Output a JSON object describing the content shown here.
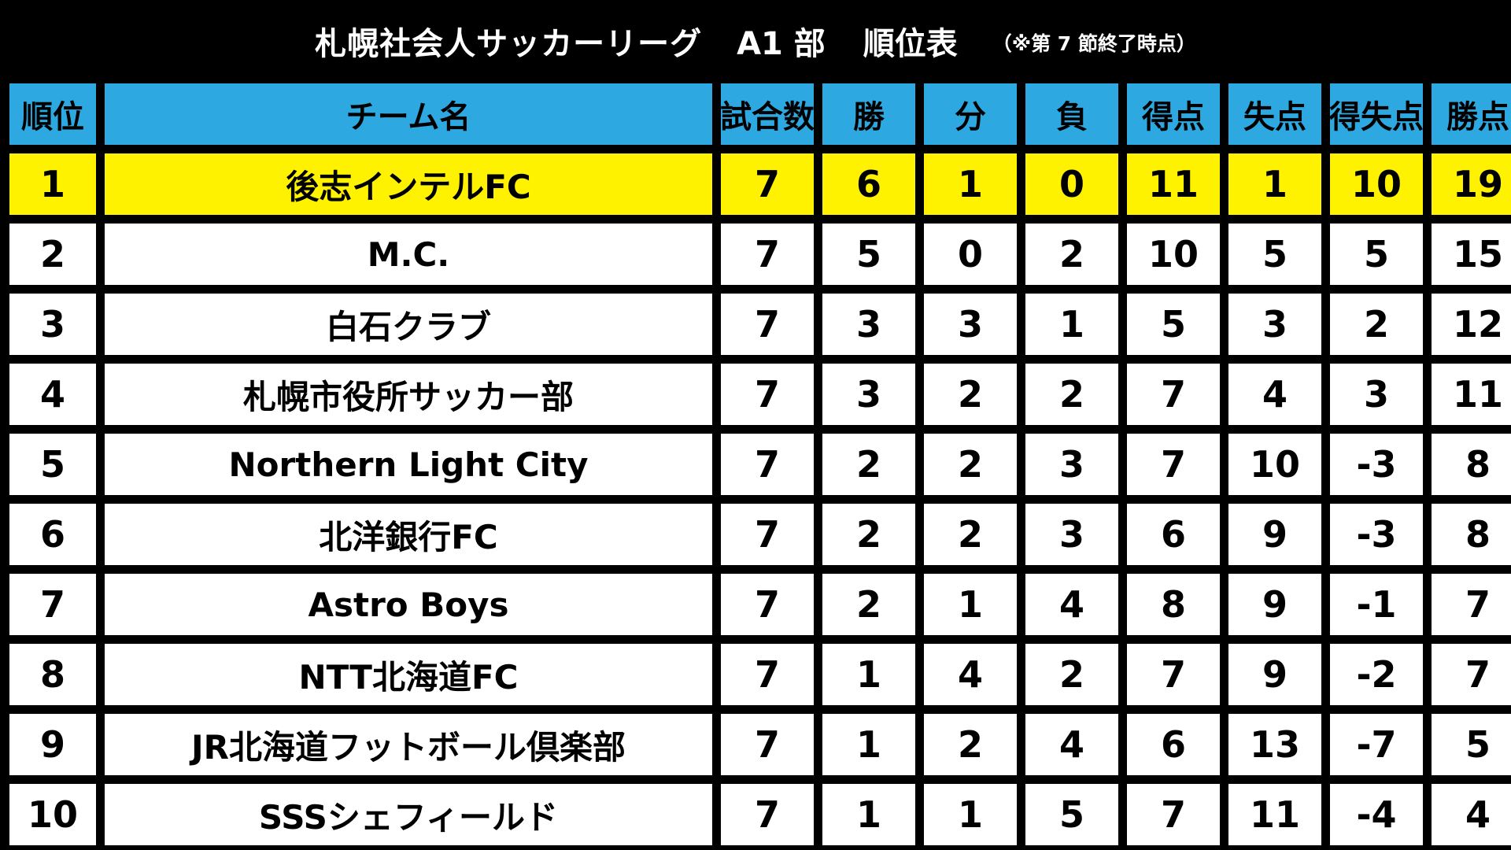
{
  "title": {
    "main": "札幌社会人サッカーリーグ",
    "division": "A1 部",
    "standings": "順位表",
    "note": "（※第 7 節終了時点）"
  },
  "colors": {
    "background": "#000000",
    "header": "#2ea8e0",
    "leader_row": "#fff200",
    "row": "#ffffff"
  },
  "table": {
    "headers": [
      "順位",
      "チーム名",
      "試合数",
      "勝",
      "分",
      "負",
      "得点",
      "失点",
      "得失点",
      "勝点"
    ],
    "rows": [
      [
        "1",
        "後志インテルFC",
        "7",
        "6",
        "1",
        "0",
        "11",
        "1",
        "10",
        "19"
      ],
      [
        "2",
        "M.C.",
        "7",
        "5",
        "0",
        "2",
        "10",
        "5",
        "5",
        "15"
      ],
      [
        "3",
        "白石クラブ",
        "7",
        "3",
        "3",
        "1",
        "5",
        "3",
        "2",
        "12"
      ],
      [
        "4",
        "札幌市役所サッカー部",
        "7",
        "3",
        "2",
        "2",
        "7",
        "4",
        "3",
        "11"
      ],
      [
        "5",
        "Northern Light City",
        "7",
        "2",
        "2",
        "3",
        "7",
        "10",
        "-3",
        "8"
      ],
      [
        "6",
        "北洋銀行FC",
        "7",
        "2",
        "2",
        "3",
        "6",
        "9",
        "-3",
        "8"
      ],
      [
        "7",
        "Astro Boys",
        "7",
        "2",
        "1",
        "4",
        "8",
        "9",
        "-1",
        "7"
      ],
      [
        "8",
        "NTT北海道FC",
        "7",
        "1",
        "4",
        "2",
        "7",
        "9",
        "-2",
        "7"
      ],
      [
        "9",
        "JR北海道フットボール倶楽部",
        "7",
        "1",
        "2",
        "4",
        "6",
        "13",
        "-7",
        "5"
      ],
      [
        "10",
        "SSSシェフィールド",
        "7",
        "1",
        "1",
        "5",
        "7",
        "11",
        "-4",
        "4"
      ]
    ]
  }
}
